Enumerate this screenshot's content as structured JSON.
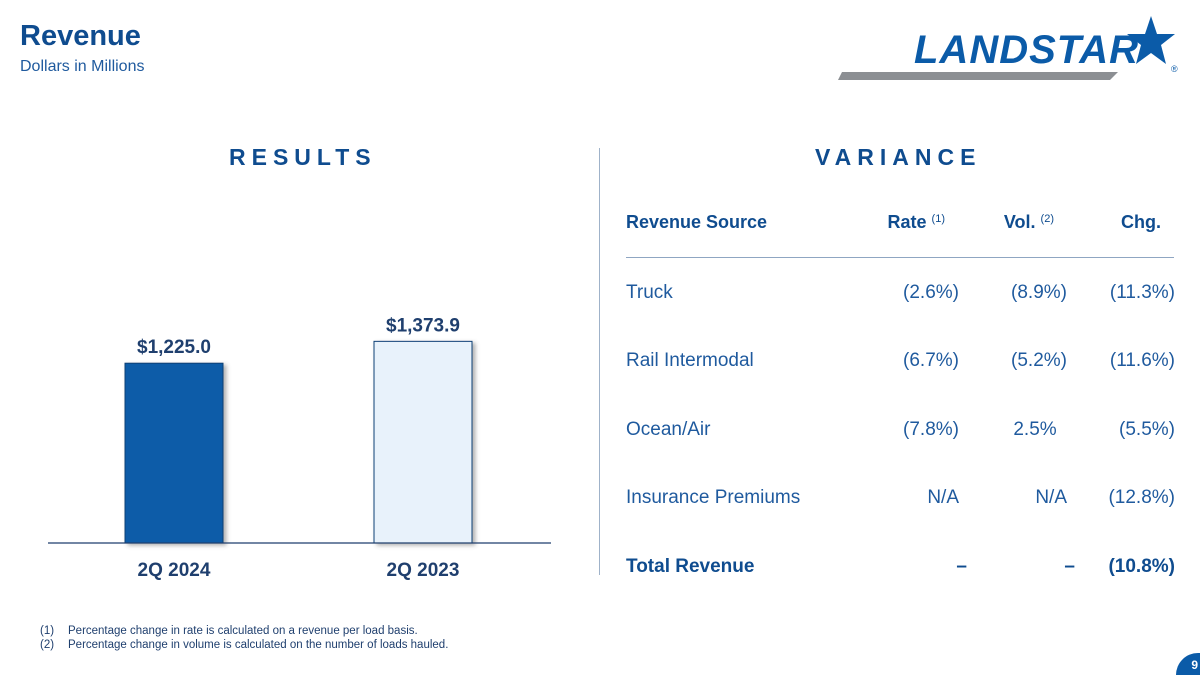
{
  "header": {
    "title": "Revenue",
    "subtitle": "Dollars in Millions"
  },
  "logo": {
    "text": "LANDSTAR",
    "registered": "®",
    "brand_color": "#0b5ba8"
  },
  "results": {
    "heading": "RESULTS"
  },
  "variance": {
    "heading": "VARIANCE",
    "columns": {
      "source": "Revenue Source",
      "rate": "Rate",
      "rate_note": "(1)",
      "vol": "Vol.",
      "vol_note": "(2)",
      "chg": "Chg."
    },
    "rows": [
      {
        "source": "Truck",
        "rate": "(2.6%)",
        "vol": "(8.9%)",
        "chg": "(11.3%)"
      },
      {
        "source": "Rail Intermodal",
        "rate": "(6.7%)",
        "vol": "(5.2%)",
        "chg": "(11.6%)"
      },
      {
        "source": "Ocean/Air",
        "rate": "(7.8%)",
        "vol": "2.5%",
        "chg": "(5.5%)"
      },
      {
        "source": "Insurance Premiums",
        "rate": "N/A",
        "vol": "N/A",
        "chg": "(12.8%)"
      }
    ],
    "total": {
      "source": "Total Revenue",
      "rate": "–",
      "vol": "–",
      "chg": "(10.8%)"
    }
  },
  "chart_data": {
    "type": "bar",
    "title": "RESULTS",
    "categories": [
      "2Q 2024",
      "2Q 2023"
    ],
    "values": [
      1225.0,
      1373.9
    ],
    "data_labels": [
      "$1,225.0",
      "$1,373.9"
    ],
    "ylim": [
      0,
      1860
    ],
    "xlabel": "",
    "ylabel": "Dollars in Millions",
    "colors": [
      "#0b5ba8",
      "#e8f2fb"
    ],
    "outline": "#0f3f75",
    "grid": false
  },
  "footnotes": [
    {
      "num": "(1)",
      "text": "Percentage change in rate is calculated on a revenue per load basis."
    },
    {
      "num": "(2)",
      "text": "Percentage change in volume is calculated on the number of loads hauled."
    }
  ],
  "page_number": "9"
}
